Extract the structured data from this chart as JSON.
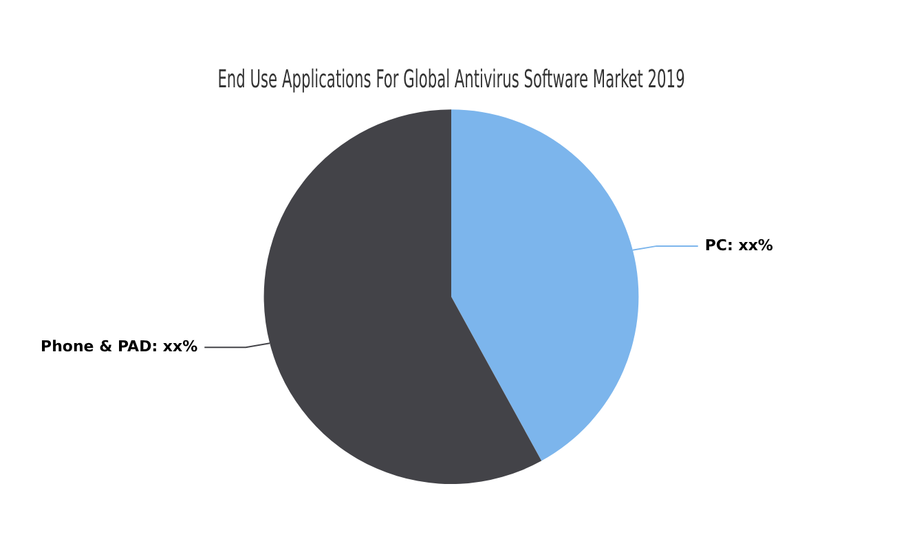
{
  "chart_data": {
    "type": "pie",
    "title": "End Use Applications For Global Antivirus Software Market 2019",
    "categories": [
      "PC",
      "Phone & PAD"
    ],
    "values": [
      42,
      58
    ],
    "colors": [
      "#7cb5ec",
      "#434348"
    ],
    "value_labels": [
      "xx%",
      "xx%"
    ],
    "legend": false
  }
}
